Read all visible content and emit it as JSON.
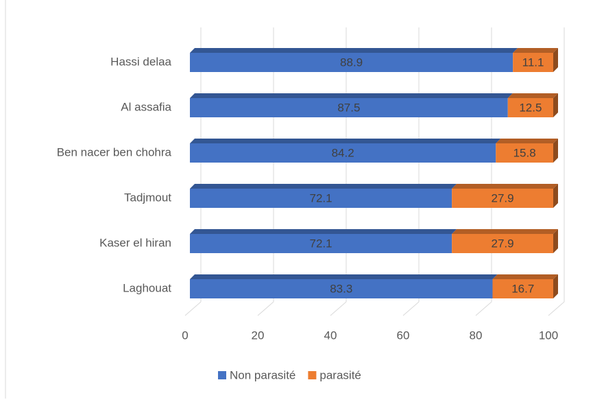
{
  "chart_data": {
    "type": "bar",
    "orientation": "horizontal",
    "stacked": true,
    "categories": [
      "Laghouat",
      "Kaser el hiran",
      "Tadjmout",
      "Ben nacer ben chohra",
      "Al assafia",
      "Hassi delaa"
    ],
    "series": [
      {
        "name": "Non parasité",
        "color": "#4472c4",
        "values": [
          83.3,
          72.1,
          72.1,
          84.2,
          87.5,
          88.9
        ]
      },
      {
        "name": "parasité",
        "color": "#ed7d31",
        "values": [
          16.7,
          27.9,
          27.9,
          15.8,
          12.5,
          11.1
        ]
      }
    ],
    "xlim": [
      0,
      100
    ],
    "xticks": [
      0,
      20,
      40,
      60,
      80,
      100
    ],
    "grid": true,
    "legend": "bottom"
  }
}
